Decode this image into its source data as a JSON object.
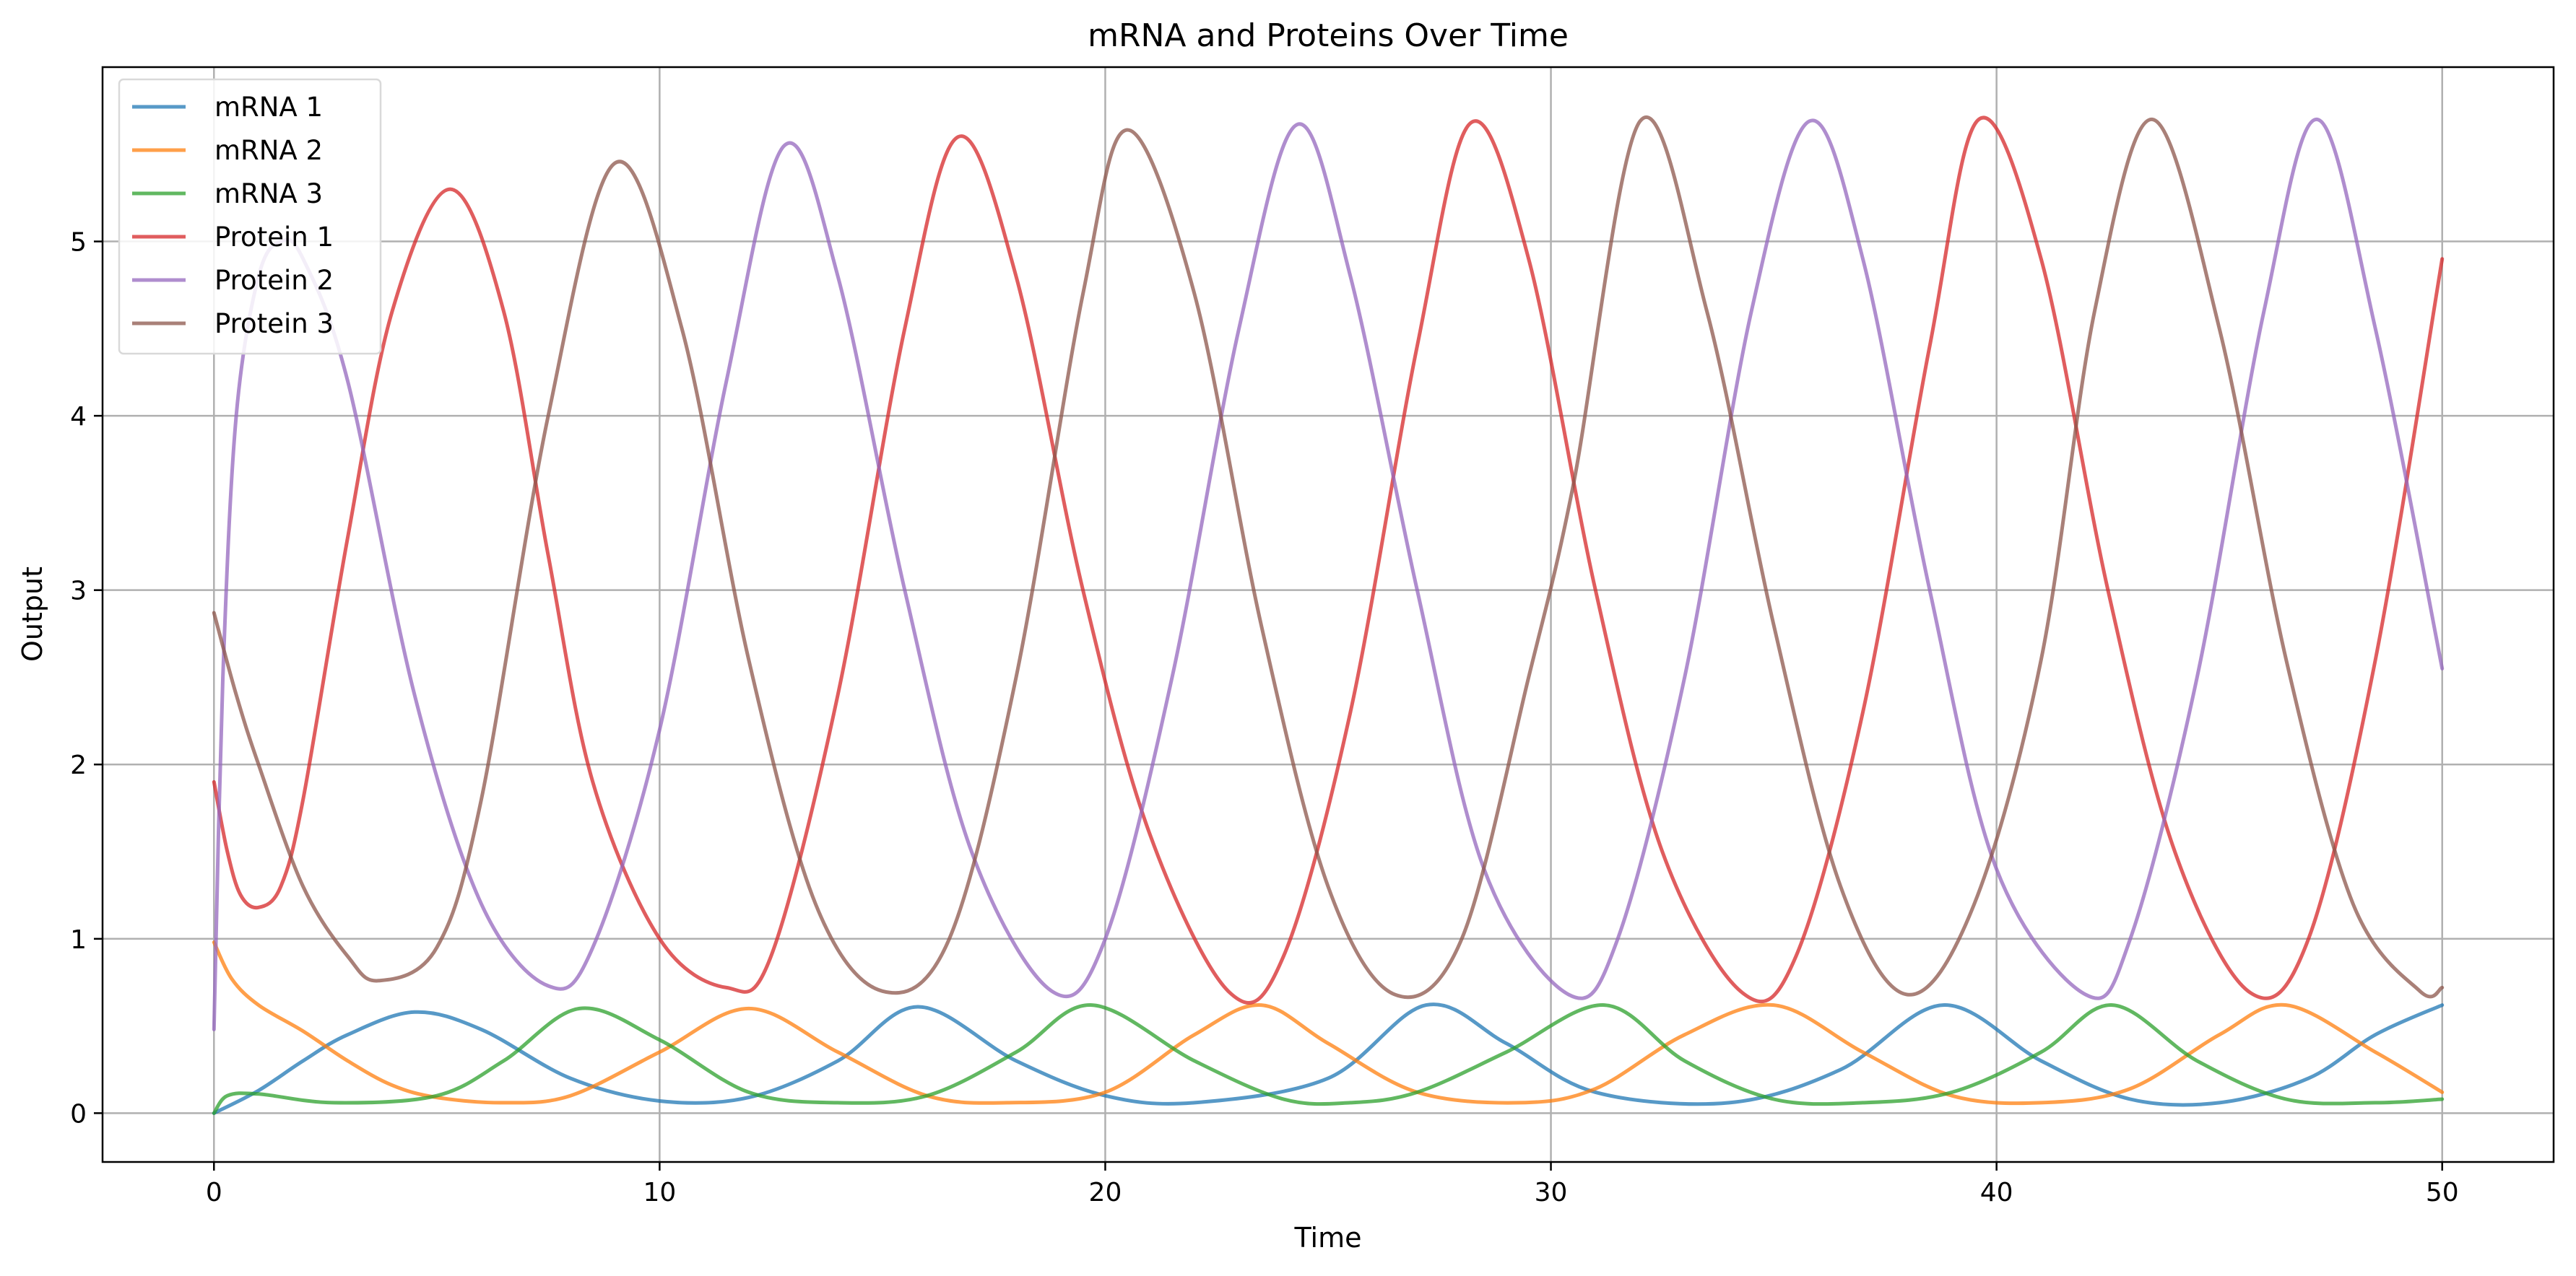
{
  "chart_data": {
    "type": "line",
    "title": "mRNA and Proteins Over Time",
    "xlabel": "Time",
    "ylabel": "Output",
    "xlim": [
      -2.5,
      52.5
    ],
    "ylim": [
      -0.28,
      6.0
    ],
    "xticks": [
      0,
      10,
      20,
      30,
      40,
      50
    ],
    "yticks": [
      0,
      1,
      2,
      3,
      4,
      5
    ],
    "grid": true,
    "legend_position": "top-left",
    "series": [
      {
        "name": "mRNA 1",
        "color": "#1f77b4",
        "x": [
          0,
          1,
          2,
          3,
          4.5,
          6,
          8,
          10,
          12,
          14,
          15.8,
          18,
          20,
          22,
          25,
          27.2,
          29,
          31,
          34,
          36.5,
          38.8,
          41,
          43,
          45,
          47,
          48.5,
          50
        ],
        "y": [
          0.0,
          0.13,
          0.3,
          0.45,
          0.58,
          0.48,
          0.2,
          0.07,
          0.09,
          0.3,
          0.61,
          0.3,
          0.1,
          0.06,
          0.2,
          0.62,
          0.4,
          0.12,
          0.06,
          0.25,
          0.62,
          0.3,
          0.08,
          0.06,
          0.2,
          0.45,
          0.62
        ]
      },
      {
        "name": "mRNA 2",
        "color": "#ff7f0e",
        "x": [
          0,
          0.4,
          1.0,
          2.0,
          3.0,
          4.0,
          5.0,
          6.5,
          8,
          10,
          12,
          14,
          16,
          17.8,
          20,
          22,
          23.5,
          25,
          27,
          29.3,
          31,
          33,
          35,
          37,
          39,
          41,
          43,
          45,
          46.5,
          48.5,
          50
        ],
        "y": [
          0.98,
          0.77,
          0.62,
          0.47,
          0.3,
          0.16,
          0.09,
          0.06,
          0.1,
          0.35,
          0.6,
          0.35,
          0.1,
          0.06,
          0.12,
          0.45,
          0.62,
          0.4,
          0.12,
          0.06,
          0.14,
          0.45,
          0.62,
          0.35,
          0.1,
          0.06,
          0.14,
          0.45,
          0.62,
          0.35,
          0.12
        ]
      },
      {
        "name": "mRNA 3",
        "color": "#2ca02c",
        "x": [
          0,
          0.3,
          1.0,
          2.7,
          5,
          6.5,
          8.2,
          10,
          12,
          14,
          16,
          18,
          19.7,
          22,
          24,
          25.5,
          27,
          29,
          31.2,
          33,
          35,
          37,
          39,
          41,
          42.6,
          44.5,
          46.5,
          48.5,
          50
        ],
        "y": [
          0.0,
          0.1,
          0.11,
          0.06,
          0.1,
          0.3,
          0.6,
          0.42,
          0.12,
          0.06,
          0.1,
          0.35,
          0.62,
          0.3,
          0.08,
          0.06,
          0.12,
          0.35,
          0.62,
          0.3,
          0.08,
          0.06,
          0.12,
          0.35,
          0.62,
          0.3,
          0.08,
          0.06,
          0.08
        ]
      },
      {
        "name": "Protein 1",
        "color": "#d62728",
        "x": [
          0,
          0.3,
          0.6,
          1.0,
          1.5,
          2.0,
          3.0,
          4.0,
          5.3,
          6.5,
          7.5,
          8.5,
          10,
          11.5,
          12.5,
          14,
          15.5,
          16.7,
          18,
          19.5,
          21,
          22.8,
          24,
          25.5,
          27,
          28.2,
          29.5,
          31,
          32.5,
          34.3,
          35.5,
          37,
          38.5,
          39.6,
          41,
          42.5,
          44,
          45.7,
          47,
          48.5,
          50
        ],
        "y": [
          1.9,
          1.5,
          1.25,
          1.18,
          1.3,
          1.8,
          3.3,
          4.6,
          5.3,
          4.6,
          3.2,
          1.9,
          1.0,
          0.72,
          0.9,
          2.4,
          4.5,
          5.6,
          4.8,
          3.0,
          1.6,
          0.69,
          0.9,
          2.3,
          4.4,
          5.68,
          4.9,
          3.0,
          1.5,
          0.69,
          0.9,
          2.3,
          4.4,
          5.7,
          4.9,
          3.0,
          1.5,
          0.69,
          1.0,
          2.6,
          4.9
        ]
      },
      {
        "name": "Protein 2",
        "color": "#9467bd",
        "x": [
          0,
          0.2,
          0.5,
          1.0,
          1.5,
          2.0,
          3.0,
          4.5,
          6.0,
          7.5,
          8.5,
          10,
          11.5,
          12.8,
          14,
          15.5,
          17,
          18.8,
          20,
          21.5,
          23,
          24.3,
          25.5,
          27,
          28.5,
          30.4,
          31.5,
          33,
          34.5,
          35.8,
          37,
          38.5,
          40,
          42,
          43,
          44.5,
          46,
          47.2,
          48.5,
          50
        ],
        "y": [
          0.48,
          2.5,
          4.0,
          4.8,
          5.0,
          4.9,
          4.2,
          2.4,
          1.2,
          0.73,
          0.95,
          2.2,
          4.2,
          5.55,
          4.8,
          3.0,
          1.5,
          0.7,
          1.0,
          2.5,
          4.5,
          5.67,
          4.8,
          3.0,
          1.4,
          0.68,
          1.0,
          2.5,
          4.6,
          5.69,
          4.9,
          3.0,
          1.4,
          0.68,
          1.0,
          2.5,
          4.6,
          5.7,
          4.5,
          2.55
        ]
      },
      {
        "name": "Protein 3",
        "color": "#8c564b",
        "x": [
          0,
          0.5,
          1.0,
          2.0,
          3.0,
          3.7,
          5.0,
          6.0,
          7.5,
          9.0,
          10.5,
          12,
          13.5,
          15,
          16.5,
          18,
          19.5,
          20.5,
          22,
          23.5,
          25,
          26.5,
          28,
          29.5,
          30.5,
          32,
          33.5,
          35,
          36.5,
          38,
          39.5,
          41,
          42.2,
          43.5,
          45,
          46.5,
          48,
          49.5,
          50
        ],
        "y": [
          2.87,
          2.4,
          2.0,
          1.3,
          0.9,
          0.76,
          0.95,
          1.8,
          4.0,
          5.45,
          4.5,
          2.6,
          1.2,
          0.7,
          1.0,
          2.5,
          4.7,
          5.64,
          4.7,
          2.8,
          1.3,
          0.68,
          1.0,
          2.5,
          3.6,
          5.69,
          4.6,
          2.8,
          1.3,
          0.68,
          1.2,
          2.6,
          4.6,
          5.7,
          4.5,
          2.6,
          1.2,
          0.7,
          0.72
        ]
      }
    ]
  }
}
